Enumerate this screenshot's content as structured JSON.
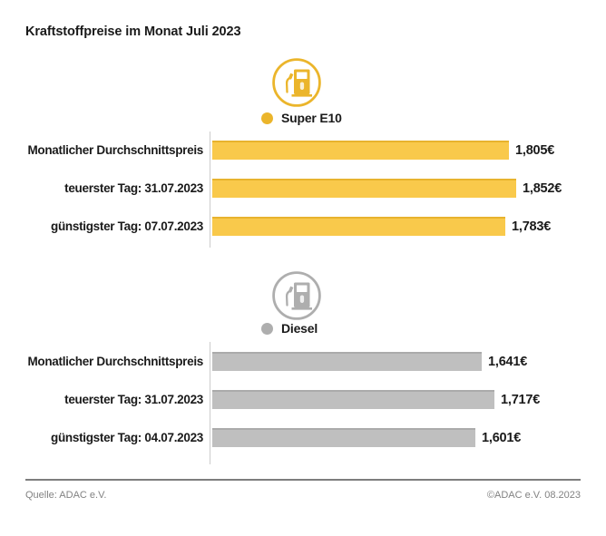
{
  "title": "Kraftstoffpreise im Monat Juli 2023",
  "chart_data": [
    {
      "type": "bar",
      "orientation": "horizontal",
      "title": "Super E10",
      "icon": "fuel-pump-icon",
      "bar_color": "#F9C94B",
      "bar_edge_color": "#E8B32E",
      "accent_color": "#EBB52B",
      "categories": [
        "Monatlicher Durchschnittspreis",
        "teuerster Tag: 31.07.2023",
        "günstigster Tag: 07.07.2023"
      ],
      "values": [
        1.805,
        1.852,
        1.783
      ],
      "value_labels": [
        "1,805€",
        "1,852€",
        "1,783€"
      ],
      "xlim": [
        0,
        2.0
      ],
      "grid": false,
      "legend_position": "top-center"
    },
    {
      "type": "bar",
      "orientation": "horizontal",
      "title": "Diesel",
      "icon": "fuel-pump-icon",
      "bar_color": "#BFBFBF",
      "bar_edge_color": "#ABABAB",
      "accent_color": "#AEAEAE",
      "categories": [
        "Monatlicher Durchschnittspreis",
        "teuerster Tag: 31.07.2023",
        "günstigster Tag: 04.07.2023"
      ],
      "values": [
        1.641,
        1.717,
        1.601
      ],
      "value_labels": [
        "1,641€",
        "1,717€",
        "1,601€"
      ],
      "xlim": [
        0,
        2.0
      ],
      "grid": false,
      "legend_position": "top-center"
    }
  ],
  "footer": {
    "source": "Quelle: ADAC e.V.",
    "copyright": "©ADAC e.V. 08.2023"
  },
  "colors": {
    "background": "#FFFFFF",
    "text": "#1A1A1A",
    "axis_line": "#CCCCCC",
    "footer_text": "#828282",
    "footer_line": "#7D7D7D"
  }
}
